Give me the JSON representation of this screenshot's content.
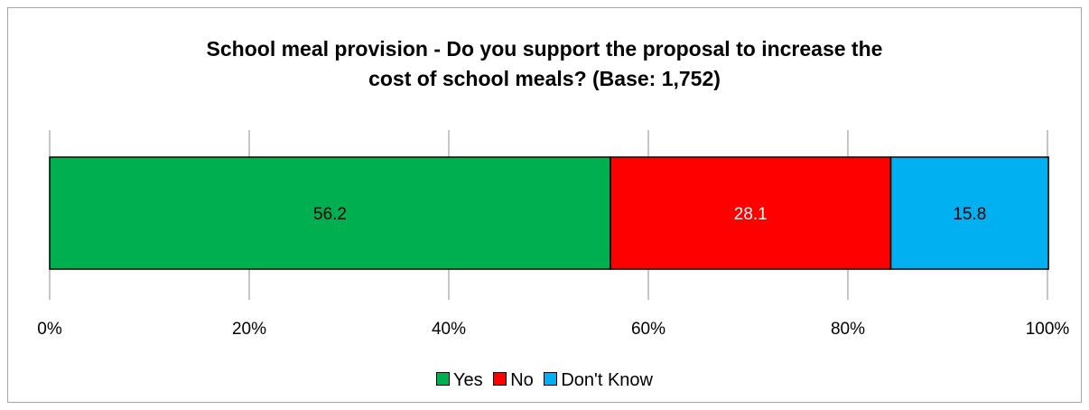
{
  "chart_data": {
    "type": "bar",
    "orientation": "horizontal",
    "stacked": true,
    "title_lines": [
      "School meal provision - Do you support the proposal to increase the",
      "cost of school meals?  (Base: 1,752)"
    ],
    "xlim": [
      0,
      100
    ],
    "x_ticks": [
      0,
      20,
      40,
      60,
      80,
      100
    ],
    "x_tick_labels": [
      "0%",
      "20%",
      "40%",
      "60%",
      "80%",
      "100%"
    ],
    "grid": "vertical",
    "legend_position": "bottom",
    "series": [
      {
        "name": "Yes",
        "value": 56.2,
        "label": "56.2",
        "color": "#00b050",
        "label_color": "#000000"
      },
      {
        "name": "No",
        "value": 28.1,
        "label": "28.1",
        "color": "#ff0000",
        "label_color": "#ffffff"
      },
      {
        "name": "Don't Know",
        "value": 15.8,
        "label": "15.8",
        "color": "#00b0f0",
        "label_color": "#000000"
      }
    ]
  }
}
